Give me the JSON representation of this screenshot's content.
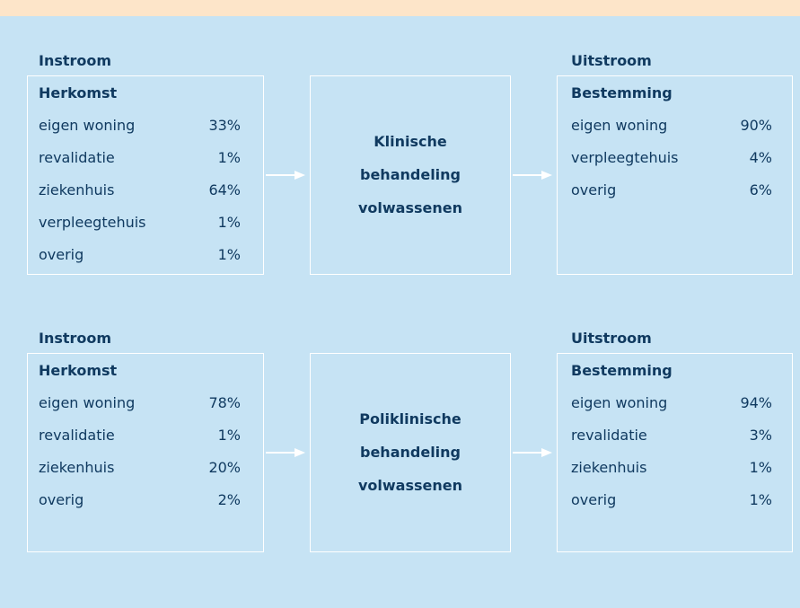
{
  "flows": [
    {
      "inflow_label": "Instroom",
      "origin_title": "Herkomst",
      "origin_rows": [
        [
          "eigen woning",
          "33%"
        ],
        [
          "revalidatie",
          "1%"
        ],
        [
          "ziekenhuis",
          "64%"
        ],
        [
          "verpleegtehuis",
          "1%"
        ],
        [
          "overig",
          "1%"
        ]
      ],
      "process": [
        "Klinische",
        "behandeling",
        "volwassenen"
      ],
      "outflow_label": "Uitstroom",
      "destination_title": "Bestemming",
      "destination_rows": [
        [
          "eigen woning",
          "90%"
        ],
        [
          "verpleegtehuis",
          "4%"
        ],
        [
          "overig",
          "6%"
        ]
      ]
    },
    {
      "inflow_label": "Instroom",
      "origin_title": "Herkomst",
      "origin_rows": [
        [
          "eigen woning",
          "78%"
        ],
        [
          "revalidatie",
          "1%"
        ],
        [
          "ziekenhuis",
          "20%"
        ],
        [
          "overig",
          "2%"
        ]
      ],
      "process": [
        "Poliklinische",
        "behandeling",
        "volwassenen"
      ],
      "outflow_label": "Uitstroom",
      "destination_title": "Bestemming",
      "destination_rows": [
        [
          "eigen woning",
          "94%"
        ],
        [
          "revalidatie",
          "3%"
        ],
        [
          "ziekenhuis",
          "1%"
        ],
        [
          "overig",
          "1%"
        ]
      ]
    }
  ]
}
